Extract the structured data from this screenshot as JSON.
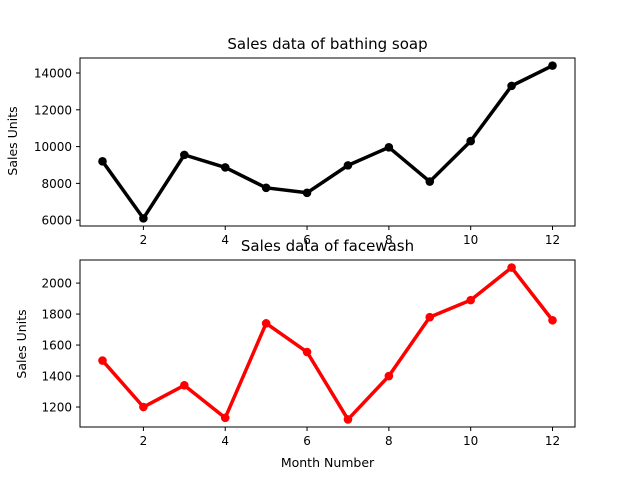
{
  "chart_data": [
    {
      "type": "line",
      "title": "Sales data of bathing soap",
      "xlabel": "",
      "ylabel": "Sales Units",
      "x": [
        1,
        2,
        3,
        4,
        5,
        6,
        7,
        8,
        9,
        10,
        11,
        12
      ],
      "series": [
        {
          "values": [
            9200,
            6100,
            9550,
            8870,
            7760,
            7490,
            8980,
            9960,
            8100,
            10300,
            13300,
            14400
          ],
          "color": "#000000"
        }
      ],
      "xticks": [
        2,
        4,
        6,
        8,
        10,
        12
      ],
      "yticks": [
        6000,
        8000,
        10000,
        12000,
        14000
      ],
      "xlim": [
        0.45,
        12.55
      ],
      "ylim": [
        5685,
        14815
      ],
      "marker": "circle",
      "grid": false
    },
    {
      "type": "line",
      "title": "Sales data of facewash",
      "xlabel": "Month Number",
      "ylabel": "Sales Units",
      "x": [
        1,
        2,
        3,
        4,
        5,
        6,
        7,
        8,
        9,
        10,
        11,
        12
      ],
      "series": [
        {
          "values": [
            1500,
            1200,
            1340,
            1130,
            1740,
            1555,
            1120,
            1400,
            1780,
            1890,
            2100,
            1760
          ],
          "color": "#ff0000"
        }
      ],
      "xticks": [
        2,
        4,
        6,
        8,
        10,
        12
      ],
      "yticks": [
        1200,
        1400,
        1600,
        1800,
        2000
      ],
      "xlim": [
        0.45,
        12.55
      ],
      "ylim": [
        1071,
        2149
      ],
      "marker": "circle",
      "grid": false
    }
  ]
}
